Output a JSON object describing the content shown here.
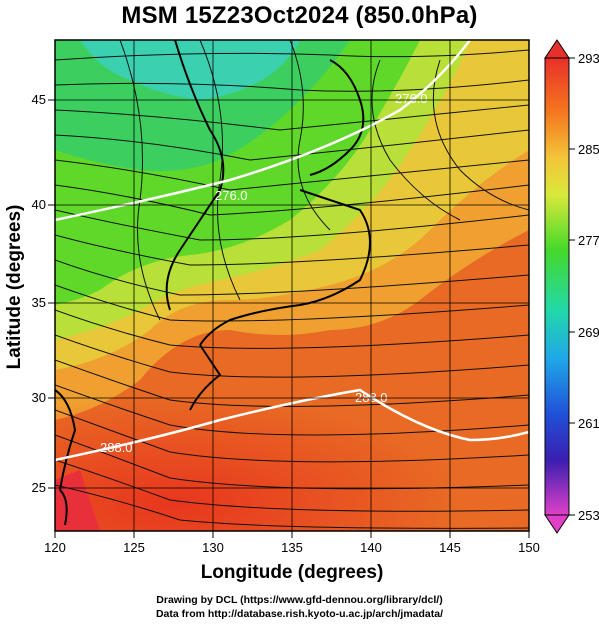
{
  "title": "MSM 15Z23Oct2024 (850.0hPa)",
  "axes": {
    "xlabel": "Longitude (degrees)",
    "ylabel": "Latitude  (degrees)",
    "x_ticks": [
      "120",
      "125",
      "130",
      "135",
      "140",
      "145",
      "150"
    ],
    "y_ticks": [
      "45",
      "40",
      "35",
      "30",
      "25"
    ],
    "xlim": [
      120,
      150
    ],
    "ylim": [
      22.4,
      47.6
    ]
  },
  "colorbar": {
    "labels": [
      "293",
      "285",
      "277",
      "269",
      "261",
      "253"
    ],
    "min": 253,
    "max": 293
  },
  "contour_labels": [
    "276.0",
    "276.0",
    "288.0",
    "288.0"
  ],
  "credits": {
    "line1": "Drawing by DCL (https://www.gfd-dennou.org/library/dcl/)",
    "line2": "Data from http://database.rish.kyoto-u.ac.jp/arch/jmadata/"
  }
}
